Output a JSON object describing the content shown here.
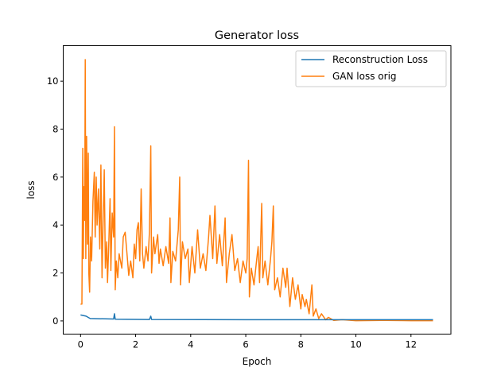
{
  "chart_data": {
    "type": "line",
    "title": "Generator loss",
    "xlabel": "Epoch",
    "ylabel": "loss",
    "xlim": [
      -0.63,
      13.45
    ],
    "ylim": [
      -0.55,
      11.48
    ],
    "xticks": [
      0,
      2,
      4,
      6,
      8,
      10,
      12
    ],
    "yticks": [
      0,
      2,
      4,
      6,
      8,
      10
    ],
    "grid": false,
    "legend_position": "top-right",
    "series": [
      {
        "name": "Reconstruction Loss",
        "color": "#1f77b4",
        "x": [
          0,
          0.2,
          0.35,
          1.2,
          1.23,
          1.26,
          2.5,
          2.55,
          2.58,
          6,
          12.8
        ],
        "y": [
          0.25,
          0.2,
          0.1,
          0.08,
          0.3,
          0.07,
          0.06,
          0.2,
          0.06,
          0.05,
          0.05
        ]
      },
      {
        "name": "GAN loss orig",
        "color": "#ff7f0e",
        "x": [
          0,
          0.05,
          0.08,
          0.1,
          0.12,
          0.15,
          0.17,
          0.19,
          0.22,
          0.25,
          0.28,
          0.3,
          0.33,
          0.36,
          0.4,
          0.45,
          0.5,
          0.53,
          0.57,
          0.6,
          0.65,
          0.7,
          0.74,
          0.78,
          0.82,
          0.86,
          0.9,
          0.95,
          0.98,
          1.02,
          1.07,
          1.1,
          1.15,
          1.2,
          1.23,
          1.26,
          1.3,
          1.35,
          1.4,
          1.5,
          1.55,
          1.62,
          1.7,
          1.75,
          1.82,
          1.9,
          1.95,
          2.0,
          2.05,
          2.1,
          2.15,
          2.2,
          2.25,
          2.3,
          2.38,
          2.45,
          2.5,
          2.55,
          2.58,
          2.65,
          2.7,
          2.8,
          2.85,
          2.9,
          3.0,
          3.1,
          3.2,
          3.25,
          3.28,
          3.35,
          3.45,
          3.55,
          3.6,
          3.63,
          3.7,
          3.8,
          3.9,
          3.95,
          4.05,
          4.15,
          4.25,
          4.35,
          4.45,
          4.55,
          4.65,
          4.7,
          4.8,
          4.88,
          4.95,
          5.05,
          5.15,
          5.25,
          5.3,
          5.4,
          5.5,
          5.6,
          5.7,
          5.8,
          5.9,
          6.0,
          6.05,
          6.1,
          6.13,
          6.2,
          6.3,
          6.4,
          6.45,
          6.5,
          6.58,
          6.62,
          6.7,
          6.8,
          6.9,
          6.95,
          7.0,
          7.05,
          7.15,
          7.25,
          7.35,
          7.45,
          7.5,
          7.6,
          7.7,
          7.8,
          7.9,
          8.0,
          8.05,
          8.15,
          8.2,
          8.3,
          8.4,
          8.45,
          8.55,
          8.65,
          8.75,
          8.9,
          9.0,
          9.2,
          9.5,
          10,
          11,
          12,
          12.8
        ],
        "y": [
          0.7,
          0.7,
          7.2,
          2.6,
          5.6,
          4.2,
          10.9,
          2.6,
          7.7,
          3.2,
          7.0,
          2.0,
          1.2,
          3.5,
          2.5,
          5.0,
          6.2,
          3.5,
          6.0,
          4.0,
          5.5,
          3.0,
          6.5,
          1.8,
          4.2,
          6.3,
          2.2,
          3.3,
          1.6,
          3.0,
          5.1,
          2.1,
          4.5,
          3.5,
          8.1,
          1.3,
          2.5,
          1.8,
          2.8,
          2.2,
          3.5,
          3.7,
          2.6,
          1.9,
          2.5,
          1.8,
          3.2,
          2.6,
          3.8,
          4.1,
          2.5,
          5.5,
          2.8,
          2.2,
          3.1,
          2.5,
          3.7,
          7.3,
          2.0,
          3.5,
          2.8,
          3.6,
          2.4,
          3.0,
          2.3,
          3.1,
          2.4,
          4.3,
          1.6,
          2.9,
          2.5,
          3.8,
          6.0,
          1.5,
          3.3,
          2.6,
          3.0,
          1.6,
          3.1,
          2.0,
          3.8,
          2.2,
          2.8,
          2.1,
          3.5,
          4.4,
          2.6,
          4.8,
          2.4,
          3.6,
          2.3,
          4.3,
          1.6,
          2.8,
          3.6,
          2.1,
          2.6,
          1.6,
          2.5,
          2.0,
          2.6,
          6.7,
          1.0,
          2.2,
          1.5,
          2.6,
          3.1,
          1.6,
          4.9,
          1.8,
          2.5,
          1.5,
          2.6,
          3.3,
          4.8,
          1.3,
          1.8,
          1.0,
          2.2,
          1.4,
          2.2,
          0.6,
          1.8,
          0.9,
          1.5,
          0.5,
          1.1,
          0.6,
          0.9,
          0.3,
          1.5,
          0.2,
          0.5,
          0.1,
          0.3,
          0.05,
          0.15,
          0.02,
          0.05,
          0.01,
          0.02,
          0.01,
          0.01
        ]
      }
    ]
  }
}
